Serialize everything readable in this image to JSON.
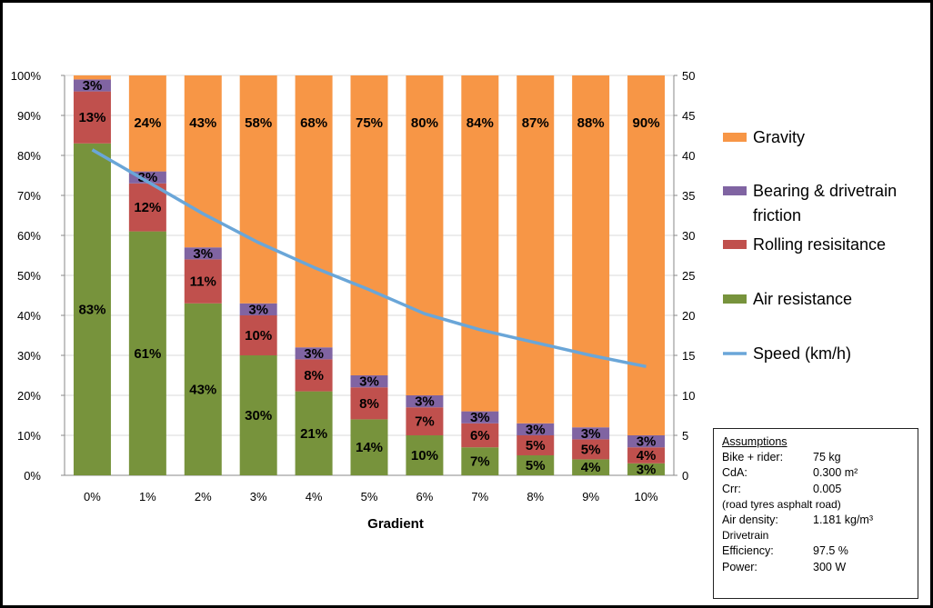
{
  "chart_data": {
    "type": "bar",
    "stacked": true,
    "xlabel": "Gradient",
    "categories": [
      "0%",
      "1%",
      "2%",
      "3%",
      "4%",
      "5%",
      "6%",
      "7%",
      "8%",
      "9%",
      "10%"
    ],
    "ylim": [
      0,
      100
    ],
    "y_tick_labels": [
      "0%",
      "10%",
      "20%",
      "30%",
      "40%",
      "50%",
      "60%",
      "70%",
      "80%",
      "90%",
      "100%"
    ],
    "y2lim": [
      0,
      50
    ],
    "y2_tick_labels": [
      "0",
      "5",
      "10",
      "15",
      "20",
      "25",
      "30",
      "35",
      "40",
      "45",
      "50"
    ],
    "series": [
      {
        "name": "Air resistance",
        "color": "#77933C",
        "values": [
          83,
          61,
          43,
          30,
          21,
          14,
          10,
          7,
          5,
          4,
          3
        ],
        "labels": [
          "83%",
          "61%",
          "43%",
          "30%",
          "21%",
          "14%",
          "10%",
          "7%",
          "5%",
          "4%",
          "3%"
        ]
      },
      {
        "name": "Rolling resisitance",
        "color": "#C0504D",
        "values": [
          13,
          12,
          11,
          10,
          8,
          8,
          7,
          6,
          5,
          5,
          4
        ],
        "labels": [
          "13%",
          "12%",
          "11%",
          "10%",
          "8%",
          "8%",
          "7%",
          "6%",
          "5%",
          "5%",
          "4%"
        ]
      },
      {
        "name": "Bearing & drivetrain friction",
        "color": "#8064A2",
        "values": [
          3,
          3,
          3,
          3,
          3,
          3,
          3,
          3,
          3,
          3,
          3
        ],
        "labels": [
          "3%",
          "3%",
          "3%",
          "3%",
          "3%",
          "3%",
          "3%",
          "3%",
          "3%",
          "3%",
          "3%"
        ]
      },
      {
        "name": "Gravity",
        "color": "#F79646",
        "values": [
          0,
          24,
          43,
          58,
          68,
          75,
          80,
          84,
          87,
          88,
          90
        ],
        "labels": [
          "",
          "24%",
          "43%",
          "58%",
          "68%",
          "75%",
          "80%",
          "84%",
          "87%",
          "88%",
          "90%"
        ]
      }
    ],
    "line_series": {
      "name": "Speed (km/h)",
      "color": "#6AA6D8",
      "axis": "secondary",
      "values": [
        40.7,
        36.7,
        32.7,
        29.1,
        26.0,
        23.2,
        20.2,
        18.2,
        16.6,
        15.0,
        13.6
      ]
    },
    "legend": [
      "Gravity",
      "Bearing & drivetrain friction",
      "Rolling resisitance",
      "Air resistance",
      "Speed (km/h)"
    ],
    "legend_placement": "right",
    "grid": true
  },
  "assumptions": {
    "title": "Assumptions",
    "bike_rider_label": "Bike + rider:",
    "bike_rider_value": "75 kg",
    "cda_label": "CdA:",
    "cda_value": "0.300 m²",
    "crr_label": "Crr:",
    "crr_value": "0.005",
    "crr_note": "(road tyres asphalt road)",
    "air_density_label": "Air density:",
    "air_density_value": "1.181 kg/m³",
    "drivetrain_label": "Drivetrain",
    "efficiency_label": "Efficiency:",
    "efficiency_value": "97.5 %",
    "power_label": "Power:",
    "power_value": "300 W"
  }
}
